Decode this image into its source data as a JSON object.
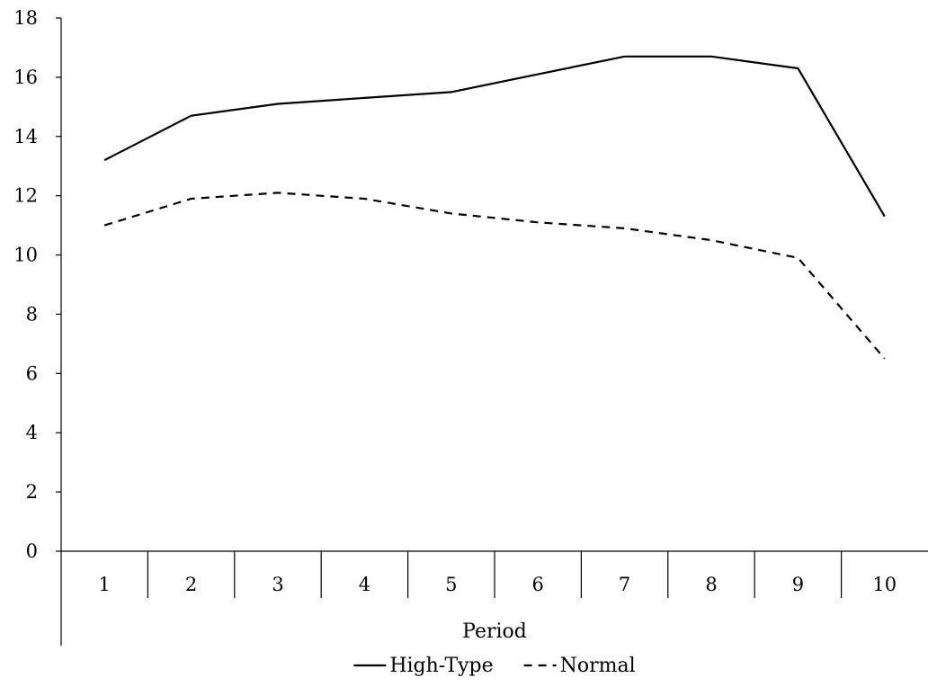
{
  "chart_data": {
    "type": "line",
    "title": "",
    "xlabel": "Period",
    "ylabel": "",
    "categories": [
      "1",
      "2",
      "3",
      "4",
      "5",
      "6",
      "7",
      "8",
      "9",
      "10"
    ],
    "ylim": [
      0,
      18
    ],
    "yticks": [
      "0",
      "2",
      "4",
      "6",
      "8",
      "10",
      "12",
      "14",
      "16",
      "18"
    ],
    "grid": false,
    "legend_position": "bottom",
    "series": [
      {
        "name": "High-Type",
        "style": "solid",
        "color": "#000000",
        "values": [
          13.2,
          14.7,
          15.1,
          15.3,
          15.5,
          16.1,
          16.7,
          16.7,
          16.3,
          11.3
        ]
      },
      {
        "name": "Normal",
        "style": "dashed",
        "color": "#000000",
        "values": [
          11.0,
          11.9,
          12.1,
          11.9,
          11.4,
          11.1,
          10.9,
          10.5,
          9.9,
          6.5
        ]
      }
    ]
  }
}
